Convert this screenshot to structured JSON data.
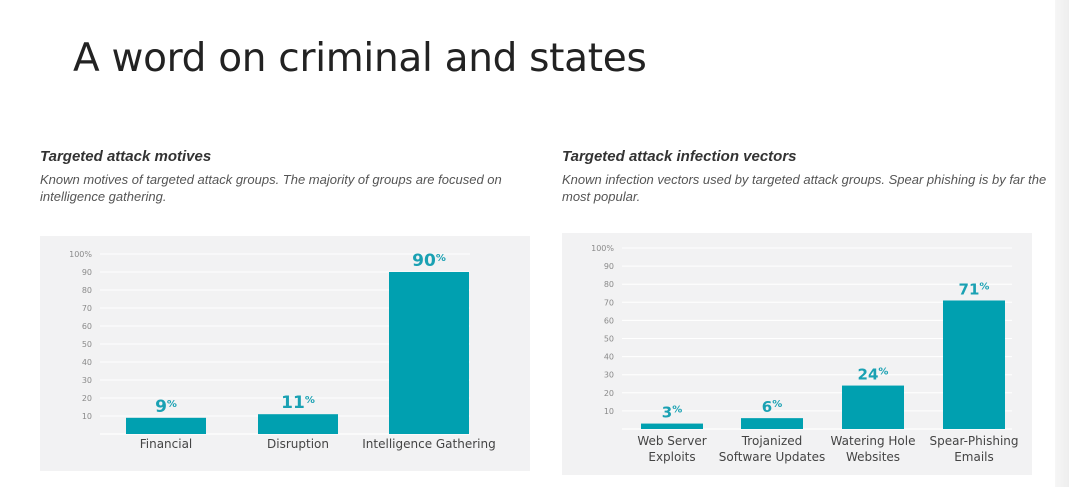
{
  "slide": {
    "title": "A word on criminal and states"
  },
  "colors": {
    "bar": "#00a0b0",
    "value_label": "#1aa1b3",
    "grid": "#ffffff",
    "panel_bg": "#f2f2f3"
  },
  "chart_data": [
    {
      "type": "bar",
      "title": "Targeted attack motives",
      "subtitle": "Known motives of targeted attack groups. The majority of groups are focused on intelligence gathering.",
      "categories": [
        [
          "Financial"
        ],
        [
          "Disruption"
        ],
        [
          "Intelligence Gathering"
        ]
      ],
      "values": [
        9,
        11,
        90
      ],
      "value_unit": "%",
      "y_ticks": [
        "10",
        "20",
        "30",
        "40",
        "50",
        "60",
        "70",
        "80",
        "90",
        "100%"
      ],
      "ylim": [
        0,
        100
      ],
      "grid": true
    },
    {
      "type": "bar",
      "title": "Targeted attack infection vectors",
      "subtitle": "Known infection vectors used by targeted attack groups. Spear phishing is by far the most popular.",
      "categories": [
        [
          "Web Server",
          "Exploits"
        ],
        [
          "Trojanized",
          "Software Updates"
        ],
        [
          "Watering Hole",
          "Websites"
        ],
        [
          "Spear-Phishing",
          "Emails"
        ]
      ],
      "values": [
        3,
        6,
        24,
        71
      ],
      "value_unit": "%",
      "y_ticks": [
        "10",
        "20",
        "30",
        "40",
        "50",
        "60",
        "70",
        "80",
        "90",
        "100%"
      ],
      "ylim": [
        0,
        100
      ],
      "grid": true
    }
  ]
}
